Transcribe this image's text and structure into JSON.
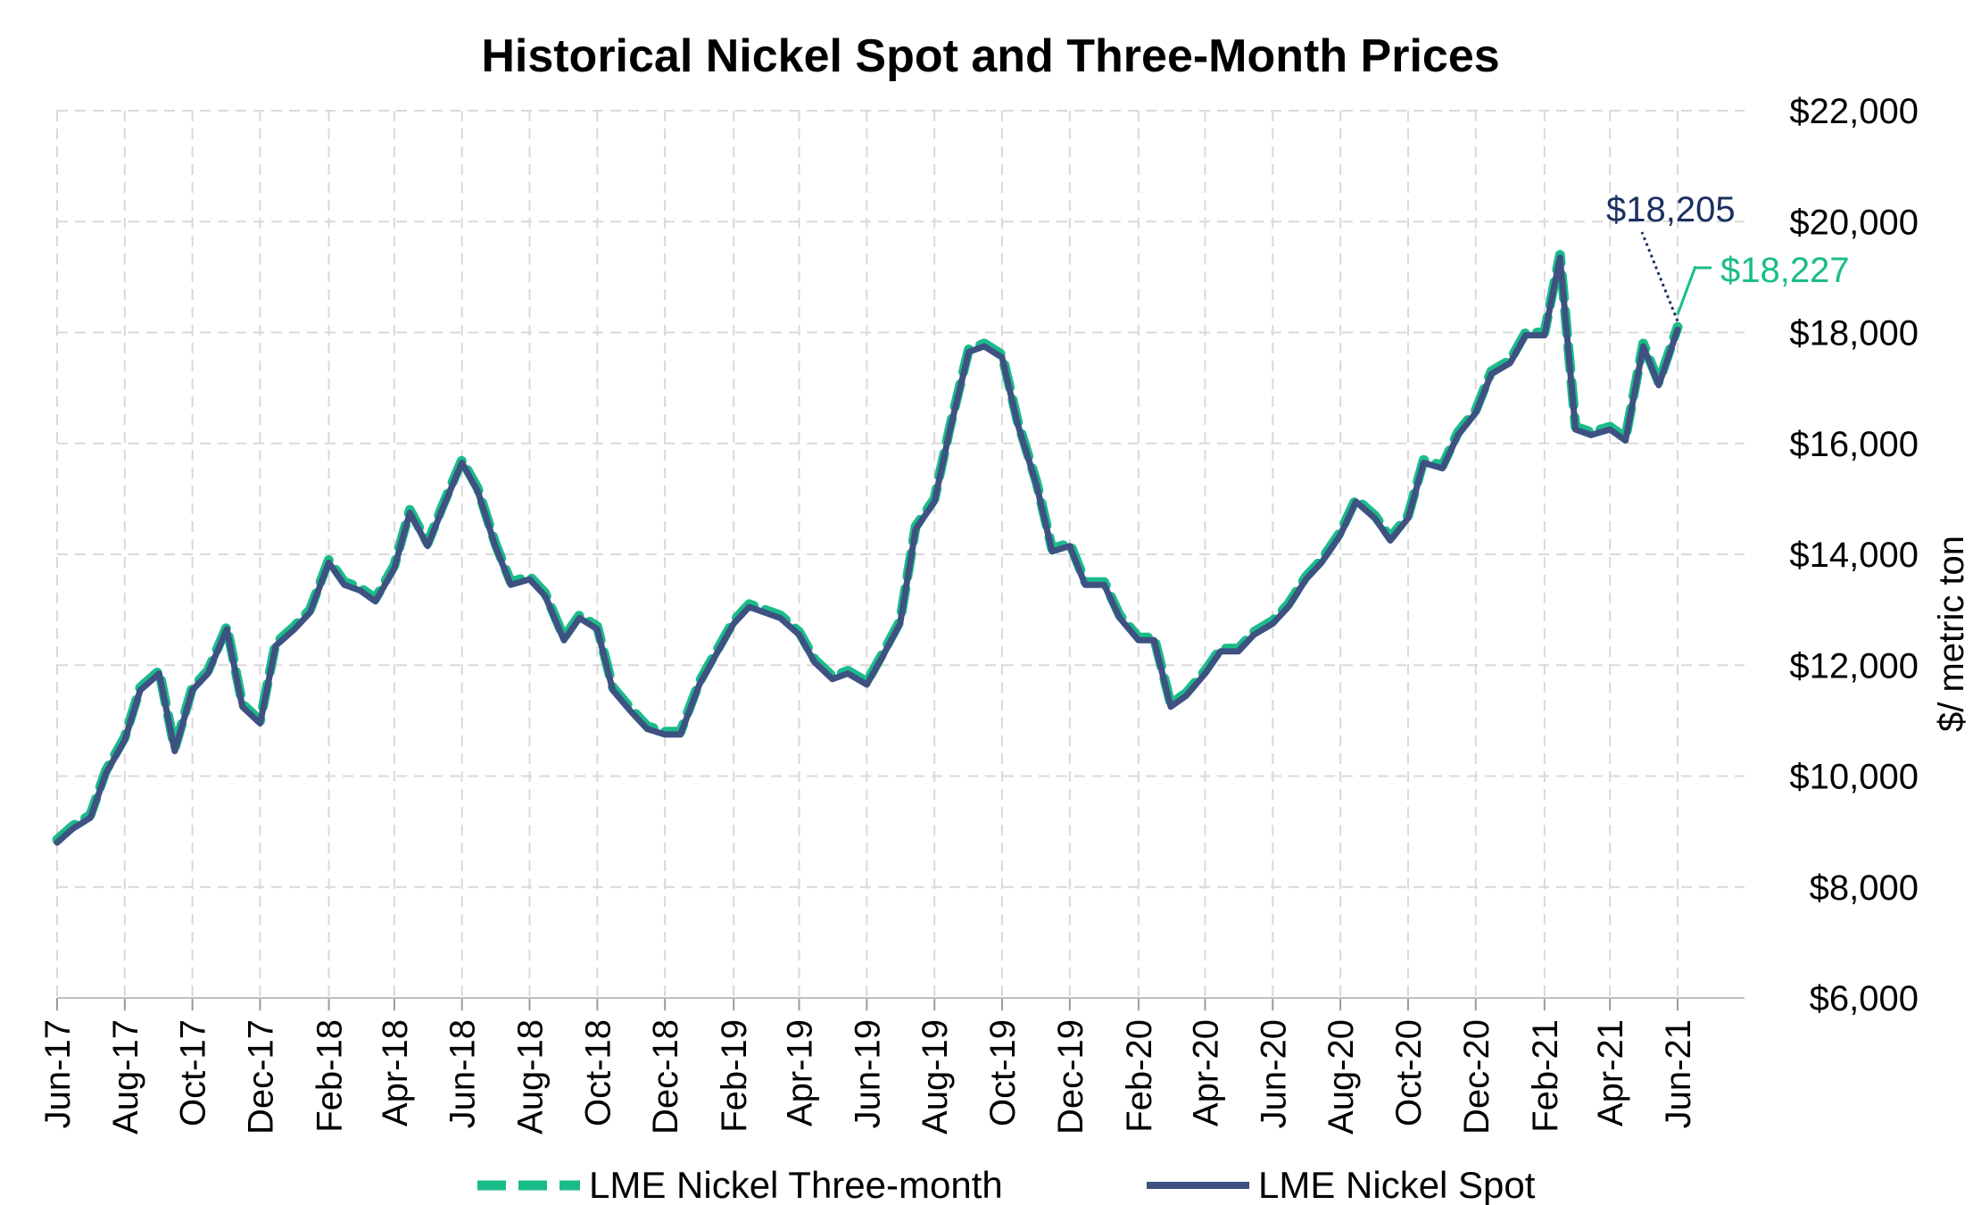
{
  "chart_data": {
    "type": "line",
    "title": "Historical Nickel Spot and Three-Month Prices",
    "ylabel": "$/ metric ton",
    "xlabel": "",
    "ylim": [
      6000,
      22000
    ],
    "yticks": [
      6000,
      8000,
      10000,
      12000,
      14000,
      16000,
      18000,
      20000,
      22000
    ],
    "ytick_labels": [
      "$6,000",
      "$8,000",
      "$10,000",
      "$12,000",
      "$14,000",
      "$16,000",
      "$18,000",
      "$20,000",
      "$22,000"
    ],
    "xticks": [
      "Jun-17",
      "Aug-17",
      "Oct-17",
      "Dec-17",
      "Feb-18",
      "Apr-18",
      "Jun-18",
      "Aug-18",
      "Oct-18",
      "Dec-18",
      "Feb-19",
      "Apr-19",
      "Jun-19",
      "Aug-19",
      "Oct-19",
      "Dec-19",
      "Feb-20",
      "Apr-20",
      "Jun-20",
      "Aug-20",
      "Oct-20",
      "Dec-20",
      "Feb-21",
      "Apr-21",
      "Jun-21"
    ],
    "grid": true,
    "legend_position": "bottom",
    "x": [
      "2017-06-01",
      "2017-06-15",
      "2017-07-01",
      "2017-07-15",
      "2017-08-01",
      "2017-08-15",
      "2017-09-01",
      "2017-09-15",
      "2017-10-01",
      "2017-10-15",
      "2017-11-01",
      "2017-11-15",
      "2017-12-01",
      "2017-12-15",
      "2018-01-01",
      "2018-01-15",
      "2018-02-01",
      "2018-02-15",
      "2018-03-01",
      "2018-03-15",
      "2018-04-01",
      "2018-04-15",
      "2018-05-01",
      "2018-05-15",
      "2018-06-01",
      "2018-06-15",
      "2018-07-01",
      "2018-07-15",
      "2018-08-01",
      "2018-08-15",
      "2018-09-01",
      "2018-09-15",
      "2018-10-01",
      "2018-10-15",
      "2018-11-01",
      "2018-11-15",
      "2018-12-01",
      "2018-12-15",
      "2019-01-01",
      "2019-01-15",
      "2019-02-01",
      "2019-02-15",
      "2019-03-01",
      "2019-03-15",
      "2019-04-01",
      "2019-04-15",
      "2019-05-01",
      "2019-05-15",
      "2019-06-01",
      "2019-06-15",
      "2019-07-01",
      "2019-07-15",
      "2019-08-01",
      "2019-08-15",
      "2019-09-01",
      "2019-09-15",
      "2019-10-01",
      "2019-10-15",
      "2019-11-01",
      "2019-11-15",
      "2019-12-01",
      "2019-12-15",
      "2020-01-01",
      "2020-01-15",
      "2020-02-01",
      "2020-02-15",
      "2020-03-01",
      "2020-03-15",
      "2020-04-01",
      "2020-04-15",
      "2020-05-01",
      "2020-05-15",
      "2020-06-01",
      "2020-06-15",
      "2020-07-01",
      "2020-07-15",
      "2020-08-01",
      "2020-08-15",
      "2020-09-01",
      "2020-09-15",
      "2020-10-01",
      "2020-10-15",
      "2020-11-01",
      "2020-11-15",
      "2020-12-01",
      "2020-12-15",
      "2021-01-01",
      "2021-01-15",
      "2021-02-01",
      "2021-02-15",
      "2021-03-01",
      "2021-03-15",
      "2021-04-01",
      "2021-04-15",
      "2021-05-01",
      "2021-05-15",
      "2021-06-01"
    ],
    "series": [
      {
        "name": "LME Nickel Three-month",
        "color": "#1abc8a",
        "style": "dashed",
        "values": [
          8850,
          9100,
          9300,
          10100,
          10700,
          11600,
          11900,
          10500,
          11600,
          11900,
          12700,
          11300,
          11000,
          12400,
          12700,
          13000,
          13900,
          13500,
          13400,
          13200,
          13800,
          14800,
          14200,
          14900,
          15700,
          15200,
          14200,
          13500,
          13600,
          13300,
          12500,
          12900,
          12700,
          11600,
          11200,
          10900,
          10800,
          10800,
          11700,
          12200,
          12800,
          13100,
          13000,
          12900,
          12600,
          12100,
          11800,
          11900,
          11700,
          12200,
          12800,
          14500,
          15000,
          16300,
          17700,
          17800,
          17600,
          16400,
          15300,
          14100,
          14200,
          13500,
          13500,
          12900,
          12500,
          12500,
          11300,
          11500,
          11900,
          12300,
          12300,
          12600,
          12800,
          13100,
          13600,
          13900,
          14400,
          15000,
          14700,
          14300,
          14700,
          15700,
          15600,
          16200,
          16600,
          17300,
          17500,
          18000,
          18000,
          19400,
          16300,
          16200,
          16300,
          16100,
          17800,
          17100,
          18100
        ]
      },
      {
        "name": "LME Nickel Spot",
        "color": "#3e5282",
        "style": "solid",
        "values": [
          8800,
          9050,
          9250,
          10050,
          10650,
          11550,
          11850,
          10450,
          11550,
          11850,
          12650,
          11250,
          10950,
          12350,
          12650,
          12950,
          13850,
          13450,
          13350,
          13150,
          13750,
          14750,
          14150,
          14850,
          15650,
          15150,
          14150,
          13450,
          13550,
          13250,
          12450,
          12850,
          12650,
          11550,
          11150,
          10850,
          10750,
          10750,
          11650,
          12150,
          12750,
          13050,
          12950,
          12850,
          12550,
          12050,
          11750,
          11850,
          11650,
          12150,
          12750,
          14450,
          14950,
          16250,
          17650,
          17750,
          17550,
          16350,
          15250,
          14050,
          14150,
          13450,
          13450,
          12850,
          12450,
          12450,
          11250,
          11450,
          11850,
          12250,
          12250,
          12550,
          12750,
          13050,
          13550,
          13850,
          14350,
          14950,
          14650,
          14250,
          14650,
          15650,
          15550,
          16150,
          16550,
          17250,
          17450,
          17950,
          17950,
          19350,
          16250,
          16150,
          16250,
          16050,
          17750,
          17050,
          18050
        ]
      }
    ],
    "annotations": [
      {
        "text": "$18,205",
        "series": "LME Nickel Spot",
        "value": 18205,
        "color": "#1a3060"
      },
      {
        "text": "$18,227",
        "series": "LME Nickel Three-month",
        "value": 18227,
        "color": "#1abc8a"
      }
    ]
  }
}
